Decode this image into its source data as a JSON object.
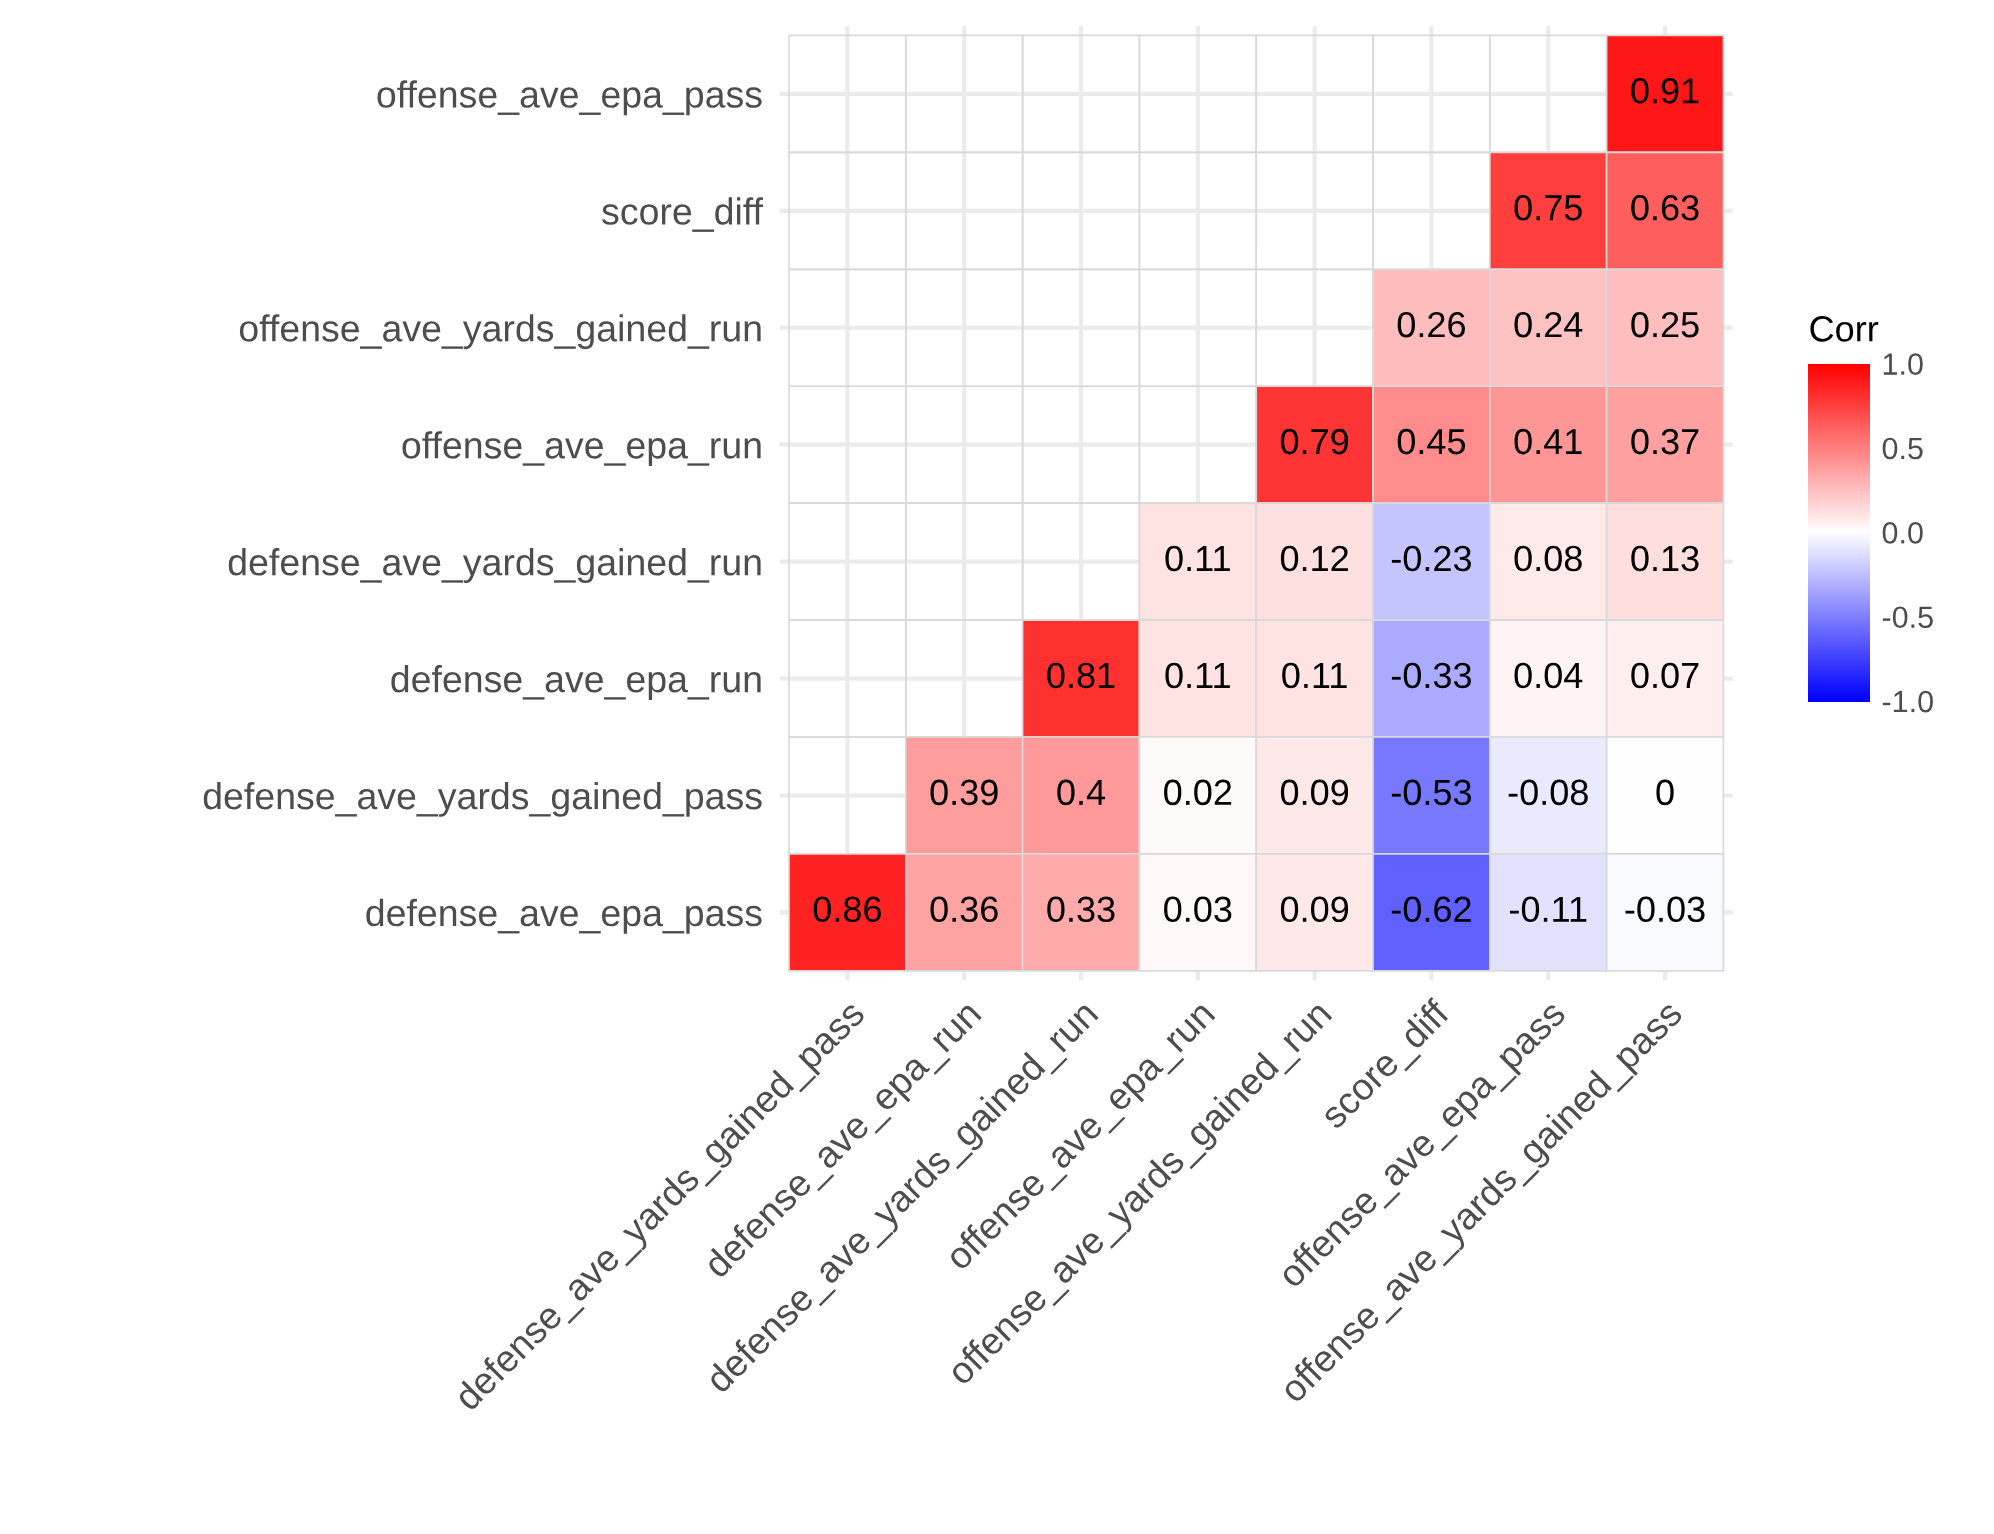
{
  "chart_data": {
    "type": "heatmap",
    "clabel": "Corr",
    "categories": [
      "defense_ave_yards_gained_pass",
      "defense_ave_epa_run",
      "defense_ave_yards_gained_run",
      "offense_ave_epa_run",
      "offense_ave_yards_gained_run",
      "score_diff",
      "offense_ave_epa_pass",
      "offense_ave_yards_gained_pass"
    ],
    "y_categories": [
      "offense_ave_epa_pass",
      "score_diff",
      "offense_ave_yards_gained_run",
      "offense_ave_epa_run",
      "defense_ave_yards_gained_run",
      "defense_ave_epa_run",
      "defense_ave_yards_gained_pass",
      "defense_ave_epa_pass"
    ],
    "cells": [
      [
        null,
        null,
        null,
        null,
        null,
        null,
        null,
        0.91
      ],
      [
        null,
        null,
        null,
        null,
        null,
        null,
        0.75,
        0.63
      ],
      [
        null,
        null,
        null,
        null,
        null,
        0.26,
        0.24,
        0.25
      ],
      [
        null,
        null,
        null,
        null,
        0.79,
        0.45,
        0.41,
        0.37
      ],
      [
        null,
        null,
        null,
        0.11,
        0.12,
        -0.23,
        0.08,
        0.13
      ],
      [
        null,
        null,
        0.81,
        0.11,
        0.11,
        -0.33,
        0.04,
        0.07
      ],
      [
        null,
        0.39,
        0.4,
        0.02,
        0.09,
        -0.53,
        -0.08,
        0
      ],
      [
        0.86,
        0.36,
        0.33,
        0.03,
        0.09,
        -0.62,
        -0.11,
        -0.03
      ]
    ],
    "clim": [
      -1.0,
      1.0
    ],
    "cticks": [
      {
        "value": -1,
        "label": "-1.0"
      },
      -0.5,
      {
        "value": 0,
        "label": "0.0"
      },
      0.5,
      {
        "value": 1,
        "label": "1.0"
      }
    ],
    "colors": [
      "#0000ff",
      "#ffffff",
      "#ff0000"
    ],
    "data_labels": true,
    "grid": true
  }
}
